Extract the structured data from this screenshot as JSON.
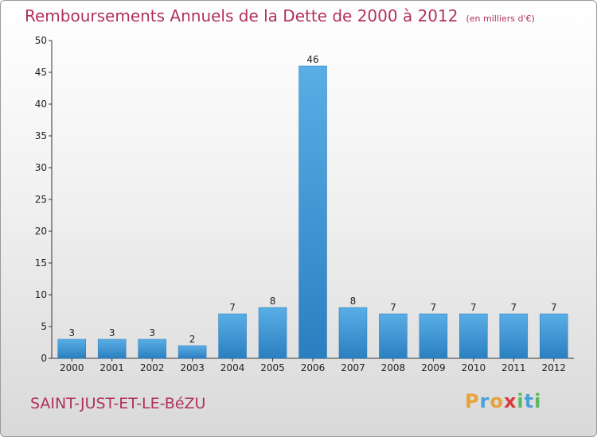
{
  "title": "Remboursements Annuels de la Dette de 2000 à 2012",
  "unit": "(en milliers d'€)",
  "commune": "SAINT-JUST-ET-LE-BéZU",
  "brand": {
    "letters": [
      "P",
      "r",
      "o",
      "x",
      "i",
      "t",
      "i"
    ],
    "colors": [
      "#e8a23a",
      "#4aa0d8",
      "#e8a23a",
      "#d93a3a",
      "#5cb85c",
      "#4aa0d8",
      "#5cb85c"
    ]
  },
  "colors": {
    "title": "#b03060",
    "bar_top": "#5aaee6",
    "bar_bottom": "#2a7fc0",
    "axis": "#333333"
  },
  "chart_data": {
    "type": "bar",
    "title": "Remboursements Annuels de la Dette de 2000 à 2012",
    "xlabel": "",
    "ylabel": "",
    "categories": [
      "2000",
      "2001",
      "2002",
      "2003",
      "2004",
      "2005",
      "2006",
      "2007",
      "2008",
      "2009",
      "2010",
      "2011",
      "2012"
    ],
    "values": [
      3,
      3,
      3,
      2,
      7,
      8,
      46,
      8,
      7,
      7,
      7,
      7,
      7
    ],
    "ylim": [
      0,
      50
    ],
    "yticks": [
      0,
      5,
      10,
      15,
      20,
      25,
      30,
      35,
      40,
      45,
      50
    ],
    "grid": false,
    "legend": "none"
  }
}
